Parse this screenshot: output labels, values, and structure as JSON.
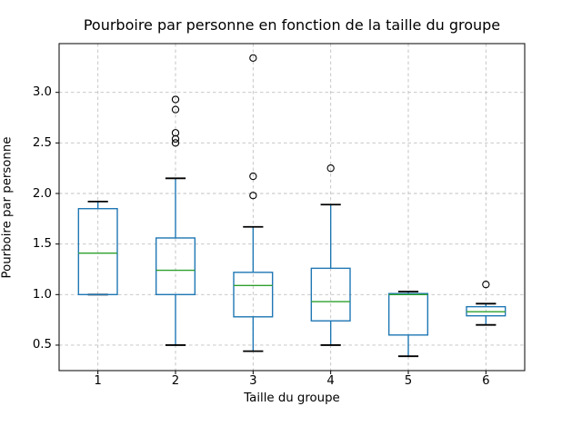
{
  "chart_data": {
    "type": "boxplot",
    "title": "Pourboire par personne en fonction de la taille du groupe",
    "xlabel": "Taille du groupe",
    "ylabel": "Pourboire par personne",
    "categories": [
      "1",
      "2",
      "3",
      "4",
      "5",
      "6"
    ],
    "ytick_labels": [
      "0.5",
      "1.0",
      "1.5",
      "2.0",
      "2.5",
      "3.0"
    ],
    "yticks": [
      0.5,
      1.0,
      1.5,
      2.0,
      2.5,
      3.0
    ],
    "xlim": [
      0.5,
      6.5
    ],
    "ylim": [
      0.248,
      3.4825
    ],
    "grid": true,
    "legend": false,
    "boxes": [
      {
        "group": "1",
        "whislo": 1.0,
        "q1": 1.0,
        "med": 1.41,
        "q3": 1.85,
        "whishi": 1.92,
        "fliers": []
      },
      {
        "group": "2",
        "whislo": 0.5,
        "q1": 1.0,
        "med": 1.24,
        "q3": 1.56,
        "whishi": 2.15,
        "fliers": [
          2.5,
          2.54,
          2.6,
          2.83,
          2.93
        ]
      },
      {
        "group": "3",
        "whislo": 0.44,
        "q1": 0.78,
        "med": 1.09,
        "q3": 1.22,
        "whishi": 1.67,
        "fliers": [
          1.98,
          2.17,
          3.34
        ]
      },
      {
        "group": "4",
        "whislo": 0.5,
        "q1": 0.74,
        "med": 0.93,
        "q3": 1.26,
        "whishi": 1.89,
        "fliers": [
          2.25
        ]
      },
      {
        "group": "5",
        "whislo": 0.39,
        "q1": 0.6,
        "med": 1.0,
        "q3": 1.01,
        "whishi": 1.03,
        "fliers": []
      },
      {
        "group": "6",
        "whislo": 0.7,
        "q1": 0.79,
        "med": 0.83,
        "q3": 0.88,
        "whishi": 0.91,
        "fliers": [
          1.1
        ]
      }
    ],
    "colors": {
      "box": "#1f77b4",
      "whisker": "#1f77b4",
      "median": "#2ca02c",
      "cap": "#000000",
      "flier_edge": "#000000",
      "grid": "#c0c0c0",
      "spine": "#000000",
      "text": "#000000",
      "background": "#ffffff"
    }
  }
}
